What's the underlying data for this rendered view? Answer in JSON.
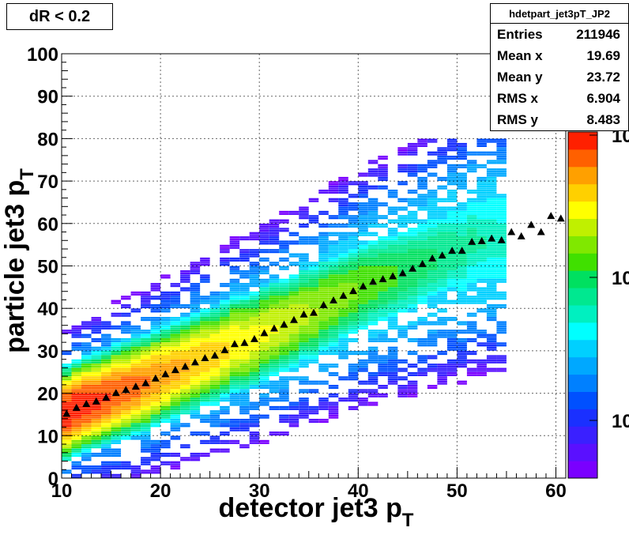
{
  "title_box": "dR < 0.2",
  "stats": {
    "name": "hdetpart_jet3pT_JP2",
    "rows": [
      {
        "label": "Entries",
        "value": "211946"
      },
      {
        "label": "Mean x",
        "value": "19.69"
      },
      {
        "label": "Mean y",
        "value": "23.72"
      },
      {
        "label": "RMS x",
        "value": "6.904"
      },
      {
        "label": "RMS y",
        "value": "8.483"
      }
    ]
  },
  "chart_data": {
    "type": "heatmap",
    "xlabel": "detector jet3 p_T",
    "ylabel": "particle jet3 p_T",
    "xlim": [
      10,
      61
    ],
    "ylim": [
      0,
      100
    ],
    "x_ticks": [
      10,
      20,
      30,
      40,
      50,
      60
    ],
    "y_ticks": [
      0,
      10,
      20,
      30,
      40,
      50,
      60,
      70,
      80,
      90,
      100
    ],
    "grid": true,
    "colorbar": {
      "scale": "log",
      "visible_labels": [
        "10",
        "10",
        "10"
      ]
    },
    "colors": {
      "marker": "#000000",
      "palette": [
        "#7a00ff",
        "#5a10ff",
        "#3a20ff",
        "#1a30ff",
        "#0050ff",
        "#0080ff",
        "#00a8ff",
        "#00d0ff",
        "#00ffff",
        "#00f0c0",
        "#00e890",
        "#00e060",
        "#40e000",
        "#80e800",
        "#c0f000",
        "#ffff00",
        "#ffd000",
        "#ffa000",
        "#ff6000",
        "#ff2000"
      ]
    },
    "profile": {
      "marker": "triangle",
      "x": [
        10.5,
        11.5,
        12.5,
        13.5,
        14.5,
        15.5,
        16.5,
        17.5,
        18.5,
        19.5,
        20.5,
        21.5,
        22.5,
        23.5,
        24.5,
        25.5,
        26.5,
        27.5,
        28.5,
        29.5,
        30.5,
        31.5,
        32.5,
        33.5,
        34.5,
        35.5,
        36.5,
        37.5,
        38.5,
        39.5,
        40.5,
        41.5,
        42.5,
        43.5,
        44.5,
        45.5,
        46.5,
        47.5,
        48.5,
        49.5,
        50.5,
        51.5,
        52.5,
        53.5,
        54.5,
        55.5,
        56.5,
        57.5,
        58.5,
        59.5,
        60.5
      ],
      "y": [
        15.2,
        16.6,
        17.5,
        18.1,
        19.0,
        20.1,
        20.8,
        21.6,
        22.4,
        23.5,
        24.5,
        25.5,
        26.3,
        27.3,
        28.3,
        28.9,
        30.2,
        31.6,
        31.9,
        32.8,
        34.2,
        35.3,
        36.2,
        37.3,
        38.6,
        39.0,
        40.8,
        41.9,
        43.0,
        44.1,
        45.2,
        46.3,
        46.9,
        47.6,
        48.3,
        49.4,
        50.5,
        51.8,
        52.5,
        53.6,
        53.6,
        55.7,
        55.9,
        56.5,
        56.1,
        58.0,
        57.0,
        59.7,
        58.0,
        61.8,
        61.2
      ]
    }
  }
}
